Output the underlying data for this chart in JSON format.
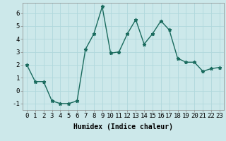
{
  "title": "",
  "xlabel": "Humidex (Indice chaleur)",
  "ylabel": "",
  "x": [
    0,
    1,
    2,
    3,
    4,
    5,
    6,
    7,
    8,
    9,
    10,
    11,
    12,
    13,
    14,
    15,
    16,
    17,
    18,
    19,
    20,
    21,
    22,
    23
  ],
  "y": [
    2.0,
    0.7,
    0.7,
    -0.8,
    -1.0,
    -1.0,
    -0.8,
    3.2,
    4.4,
    6.5,
    2.9,
    3.0,
    4.4,
    5.5,
    3.6,
    4.4,
    5.4,
    4.7,
    2.5,
    2.2,
    2.2,
    1.5,
    1.7,
    1.8
  ],
  "line_color": "#1a6b5e",
  "marker": "*",
  "marker_size": 3.5,
  "bg_color": "#cce8ea",
  "grid_color": "#b0d8dc",
  "ylim": [
    -1.5,
    6.8
  ],
  "xlim": [
    -0.5,
    23.5
  ],
  "yticks": [
    -1,
    0,
    1,
    2,
    3,
    4,
    5,
    6
  ],
  "xticks": [
    0,
    1,
    2,
    3,
    4,
    5,
    6,
    7,
    8,
    9,
    10,
    11,
    12,
    13,
    14,
    15,
    16,
    17,
    18,
    19,
    20,
    21,
    22,
    23
  ],
  "label_fontsize": 7,
  "tick_fontsize": 6.5
}
